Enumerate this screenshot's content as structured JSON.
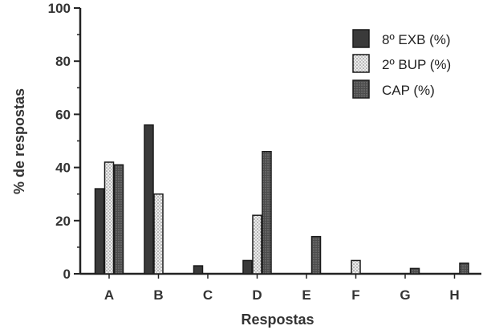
{
  "chart_data": {
    "type": "bar",
    "xlabel": "Respostas",
    "ylabel": "% de respostas",
    "ylim": [
      0,
      100
    ],
    "yticks": [
      0,
      20,
      40,
      60,
      80,
      100
    ],
    "categories": [
      "A",
      "B",
      "C",
      "D",
      "E",
      "F",
      "G",
      "H"
    ],
    "series": [
      {
        "name": "8º EXB (%)",
        "color": "#3a3a3a",
        "pattern": "solid",
        "values": [
          32,
          56,
          3,
          5,
          0,
          0,
          0,
          0
        ]
      },
      {
        "name": "2º BUP (%)",
        "color": "#d8d8d8",
        "pattern": "light-stipple",
        "values": [
          42,
          30,
          0,
          22,
          0,
          5,
          0,
          0
        ]
      },
      {
        "name": "CAP (%)",
        "color": "#5a5a5a",
        "pattern": "dark-stipple",
        "values": [
          41,
          0,
          0,
          46,
          14,
          0,
          2,
          4
        ]
      }
    ],
    "grid": false,
    "legend_position": "top-right"
  }
}
